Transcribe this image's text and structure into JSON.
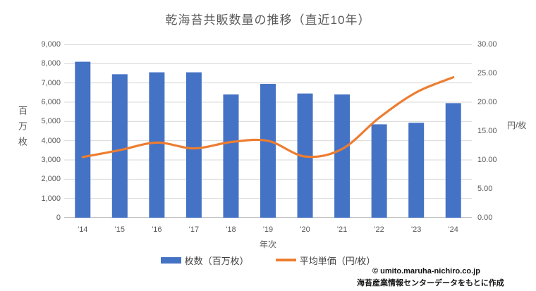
{
  "title": "乾海苔共販数量の推移（直近10年）",
  "colors": {
    "bar": "#4472C4",
    "line": "#ED7D31",
    "grid": "#D9D9D9",
    "axis_line": "#BFBFBF",
    "text": "#595959"
  },
  "chart_data": {
    "type": "bar",
    "subtype": "combo-bar-line-dual-axis",
    "title": "乾海苔共販数量の推移（直近10年）",
    "categories": [
      "'14",
      "'15",
      "'16",
      "'17",
      "'18",
      "'19",
      "'20",
      "'21",
      "'22",
      "'23",
      "'24"
    ],
    "series": [
      {
        "name": "枚数（百万枚）",
        "type": "bar",
        "axis": "left",
        "color": "#4472C4",
        "values": [
          8100,
          7450,
          7550,
          7550,
          6400,
          6950,
          6450,
          6400,
          4850,
          4930,
          5950
        ]
      },
      {
        "name": "平均単価（円/枚）",
        "type": "line",
        "axis": "right",
        "color": "#ED7D31",
        "values": [
          10.5,
          11.7,
          13.0,
          12.0,
          13.1,
          13.3,
          10.6,
          11.9,
          17.3,
          21.7,
          24.3
        ]
      }
    ],
    "xlabel": "年次",
    "left_axis": {
      "title": "百万枚",
      "min": 0,
      "max": 9000,
      "step": 1000,
      "ticks": [
        "0",
        "1,000",
        "2,000",
        "3,000",
        "4,000",
        "5,000",
        "6,000",
        "7,000",
        "8,000",
        "9,000"
      ]
    },
    "right_axis": {
      "title": "円/枚",
      "min": 0,
      "max": 30,
      "step": 5,
      "ticks": [
        "0.00",
        "5.00",
        "10.00",
        "15.00",
        "20.00",
        "25.00",
        "30.00"
      ]
    },
    "grid": true,
    "legend_position": "bottom"
  },
  "legend": {
    "bar_label": "枚数（百万枚）",
    "line_label": "平均単価（円/枚）"
  },
  "footer": {
    "credit": "© umito.maruha-nichiro.co.jp",
    "source": "海苔産業情報センターデータをもとに作成"
  }
}
